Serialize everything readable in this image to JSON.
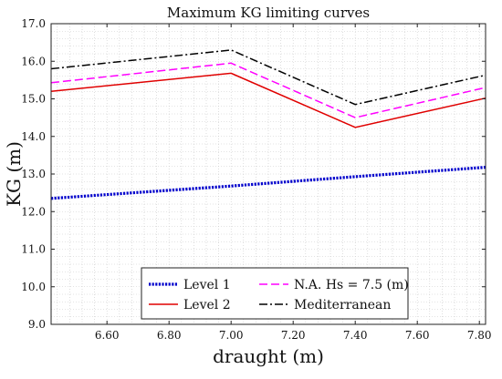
{
  "chart_data": {
    "type": "line",
    "title": "Maximum KG limiting curves",
    "xlabel": "draught (m)",
    "ylabel": "KG (m)",
    "xlim": [
      6.42,
      7.82
    ],
    "ylim": [
      9.0,
      17.0
    ],
    "xticks": [
      6.6,
      6.8,
      7.0,
      7.2,
      7.4,
      7.6,
      7.8
    ],
    "xtick_labels": [
      "6.60",
      "6.80",
      "7.00",
      "7.20",
      "7.40",
      "7.60",
      "7.80"
    ],
    "yticks": [
      9,
      10,
      11,
      12,
      13,
      14,
      15,
      16,
      17
    ],
    "ytick_labels": [
      "9.0",
      "10.0",
      "11.0",
      "12.0",
      "13.0",
      "14.0",
      "15.0",
      "16.0",
      "17.0"
    ],
    "grid": "minor dotted",
    "legend_position": "bottom-center",
    "series": [
      {
        "name": "Level 1",
        "color": "#0000cc",
        "style": "dotted",
        "x": [
          6.42,
          7.0,
          7.4,
          7.82
        ],
        "y": [
          12.35,
          12.68,
          12.93,
          13.18
        ]
      },
      {
        "name": "Level 2",
        "color": "#e00000",
        "style": "solid",
        "x": [
          6.42,
          7.0,
          7.4,
          7.82
        ],
        "y": [
          15.2,
          15.68,
          14.24,
          15.02
        ]
      },
      {
        "name": "N.A. Hs = 7.5 (m)",
        "color": "#ff00ff",
        "style": "dashed",
        "x": [
          6.42,
          7.0,
          7.4,
          7.82
        ],
        "y": [
          15.43,
          15.95,
          14.5,
          15.3
        ]
      },
      {
        "name": "Mediterranean",
        "color": "#000000",
        "style": "dashdot",
        "x": [
          6.42,
          7.0,
          7.4,
          7.82
        ],
        "y": [
          15.8,
          16.3,
          14.85,
          15.63
        ]
      }
    ]
  }
}
